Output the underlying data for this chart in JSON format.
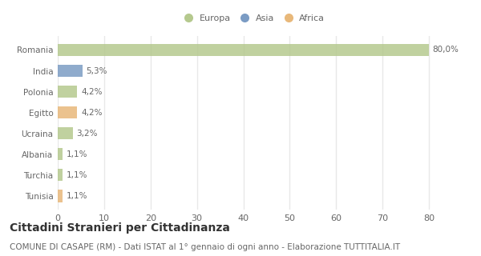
{
  "countries": [
    "Romania",
    "India",
    "Polonia",
    "Egitto",
    "Ucraina",
    "Albania",
    "Turchia",
    "Tunisia"
  ],
  "values": [
    80.0,
    5.3,
    4.2,
    4.2,
    3.2,
    1.1,
    1.1,
    1.1
  ],
  "labels": [
    "80,0%",
    "5,3%",
    "4,2%",
    "4,2%",
    "3,2%",
    "1,1%",
    "1,1%",
    "1,1%"
  ],
  "colors": [
    "#b5c98e",
    "#7b9cc4",
    "#b5c98e",
    "#e8b87a",
    "#b5c98e",
    "#b5c98e",
    "#b5c98e",
    "#e8b87a"
  ],
  "continent": [
    "Europa",
    "Asia",
    "Europa",
    "Africa",
    "Europa",
    "Europa",
    "Europa",
    "Africa"
  ],
  "legend_labels": [
    "Europa",
    "Asia",
    "Africa"
  ],
  "legend_colors": [
    "#b5c98e",
    "#7b9cc4",
    "#e8b87a"
  ],
  "title": "Cittadini Stranieri per Cittadinanza",
  "subtitle": "COMUNE DI CASAPE (RM) - Dati ISTAT al 1° gennaio di ogni anno - Elaborazione TUTTITALIA.IT",
  "xlim": [
    0,
    85
  ],
  "xticks": [
    0,
    10,
    20,
    30,
    40,
    50,
    60,
    70,
    80
  ],
  "background_color": "#ffffff",
  "plot_bg_color": "#ffffff",
  "grid_color": "#e8e8e8",
  "title_fontsize": 10,
  "subtitle_fontsize": 7.5,
  "label_fontsize": 7.5,
  "tick_fontsize": 8,
  "bar_height": 0.6,
  "label_color": "#666666",
  "text_color": "#333333"
}
